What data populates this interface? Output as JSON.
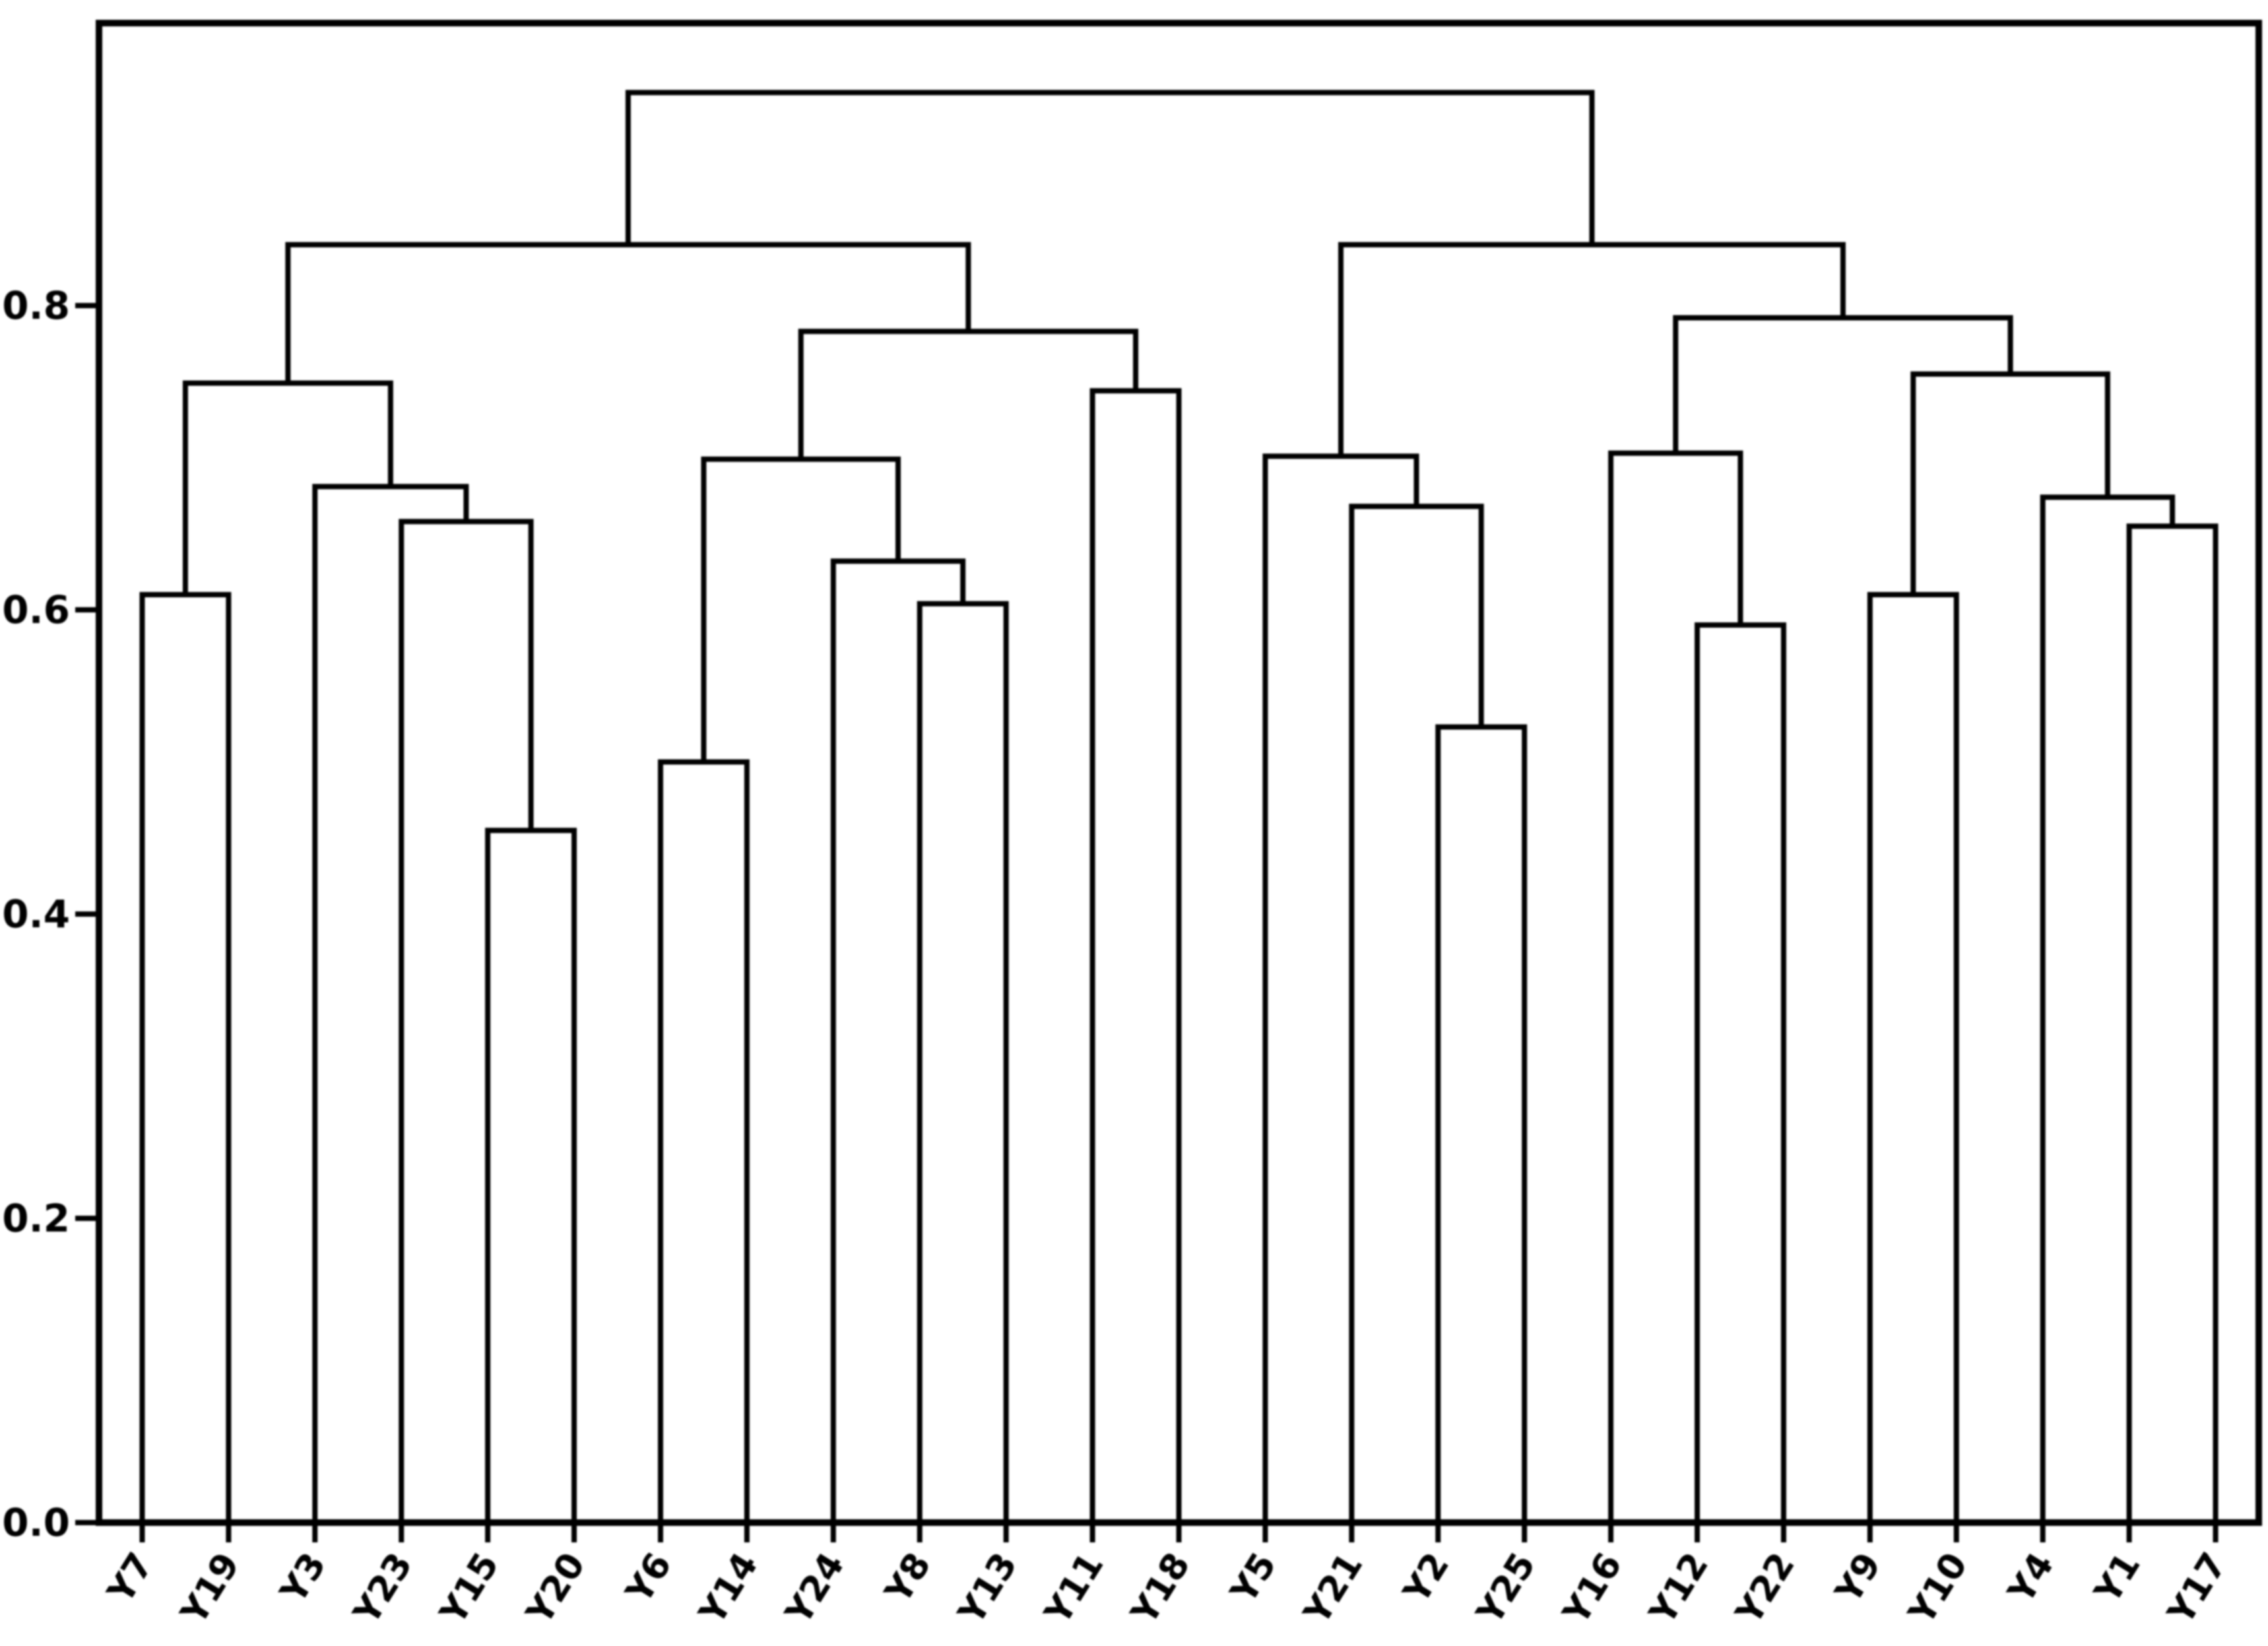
{
  "figure": {
    "background": "#ffffff",
    "line_color": "#000000"
  },
  "chart_data": {
    "type": "dendrogram",
    "title": "",
    "xlabel": "",
    "ylabel": "",
    "orientation": "top",
    "leaves": [
      "Y7",
      "Y19",
      "Y3",
      "Y23",
      "Y15",
      "Y20",
      "Y6",
      "Y14",
      "Y24",
      "Y8",
      "Y13",
      "Y11",
      "Y18",
      "Y5",
      "Y21",
      "Y2",
      "Y25",
      "Y16",
      "Y12",
      "Y22",
      "Y9",
      "Y10",
      "Y4",
      "Y1",
      "Y17"
    ],
    "ytick_values": [
      0.0,
      0.2,
      0.4,
      0.6,
      0.8
    ],
    "ytick_labels": [
      "0.0",
      "0.2",
      "0.4",
      "0.6",
      "0.8"
    ],
    "ylim": [
      0,
      0.985
    ],
    "grid": false,
    "legend": null,
    "tree": {
      "h": 0.94,
      "c": [
        {
          "h": 0.84,
          "c": [
            {
              "h": 0.749,
              "c": [
                {
                  "h": 0.61,
                  "c": [
                    "Y7",
                    "Y19"
                  ]
                },
                {
                  "h": 0.681,
                  "c": [
                    "Y3",
                    {
                      "h": 0.658,
                      "c": [
                        "Y23",
                        {
                          "h": 0.455,
                          "c": [
                            "Y15",
                            "Y20"
                          ]
                        }
                      ]
                    }
                  ]
                }
              ]
            },
            {
              "h": 0.783,
              "c": [
                {
                  "h": 0.699,
                  "c": [
                    {
                      "h": 0.5,
                      "c": [
                        "Y6",
                        "Y14"
                      ]
                    },
                    {
                      "h": 0.632,
                      "c": [
                        "Y24",
                        {
                          "h": 0.604,
                          "c": [
                            "Y8",
                            "Y13"
                          ]
                        }
                      ]
                    }
                  ]
                },
                {
                  "h": 0.744,
                  "c": [
                    "Y11",
                    "Y18"
                  ]
                }
              ]
            }
          ]
        },
        {
          "h": 0.84,
          "c": [
            {
              "h": 0.701,
              "c": [
                "Y5",
                {
                  "h": 0.668,
                  "c": [
                    "Y21",
                    {
                      "h": 0.523,
                      "c": [
                        "Y2",
                        "Y25"
                      ]
                    }
                  ]
                }
              ]
            },
            {
              "h": 0.792,
              "c": [
                {
                  "h": 0.703,
                  "c": [
                    "Y16",
                    {
                      "h": 0.59,
                      "c": [
                        "Y12",
                        "Y22"
                      ]
                    }
                  ]
                },
                {
                  "h": 0.755,
                  "c": [
                    {
                      "h": 0.61,
                      "c": [
                        "Y9",
                        "Y10"
                      ]
                    },
                    {
                      "h": 0.674,
                      "c": [
                        "Y4",
                        {
                          "h": 0.655,
                          "c": [
                            "Y1",
                            "Y17"
                          ]
                        }
                      ]
                    }
                  ]
                }
              ]
            }
          ]
        }
      ]
    }
  }
}
